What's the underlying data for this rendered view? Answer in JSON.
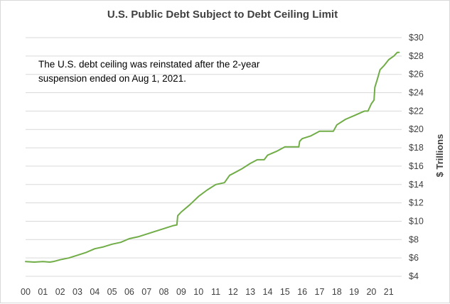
{
  "chart_data": {
    "type": "line",
    "title": "U.S. Public Debt Subject to Debt Ceiling Limit",
    "xlabel": "",
    "ylabel": "$ Trillions",
    "ylim": [
      4,
      30
    ],
    "y_tick_values": [
      4,
      6,
      8,
      10,
      12,
      14,
      16,
      18,
      20,
      22,
      24,
      26,
      28,
      30
    ],
    "y_tick_labels": [
      "$4",
      "$6",
      "$8",
      "$10",
      "$12",
      "$14",
      "$16",
      "$18",
      "$20",
      "$22",
      "$24",
      "$26",
      "$28",
      "$30"
    ],
    "xlim": [
      2000,
      2021.75
    ],
    "x_tick_values": [
      2000,
      2001,
      2002,
      2003,
      2004,
      2005,
      2006,
      2007,
      2008,
      2009,
      2010,
      2011,
      2012,
      2013,
      2014,
      2015,
      2016,
      2017,
      2018,
      2019,
      2020,
      2021
    ],
    "x_tick_labels": [
      "00",
      "01",
      "02",
      "03",
      "04",
      "05",
      "06",
      "07",
      "08",
      "09",
      "10",
      "11",
      "12",
      "13",
      "14",
      "15",
      "16",
      "17",
      "18",
      "19",
      "20",
      "21"
    ],
    "grid": true,
    "legend": "none",
    "annotation": "The U.S. debt ceiling was reinstated after the 2-year suspension ended on Aug 1, 2021.",
    "colors": {
      "line": "#70ad47",
      "grid": "#d9d9d9",
      "text": "#404040"
    },
    "series": [
      {
        "x": [
          2000.0,
          2000.5,
          2001.0,
          2001.4,
          2001.6,
          2002.0,
          2002.5,
          2003.0,
          2003.5,
          2004.0,
          2004.5,
          2005.0,
          2005.5,
          2006.0,
          2006.5,
          2007.0,
          2007.5,
          2008.0,
          2008.5,
          2008.75,
          2008.8,
          2009.0,
          2009.5,
          2010.0,
          2010.5,
          2011.0,
          2011.5,
          2011.8,
          2012.0,
          2012.5,
          2013.0,
          2013.4,
          2013.8,
          2014.0,
          2014.5,
          2015.0,
          2015.3,
          2015.8,
          2015.85,
          2016.0,
          2016.5,
          2017.0,
          2017.8,
          2018.0,
          2018.5,
          2019.0,
          2019.6,
          2019.8,
          2020.0,
          2020.15,
          2020.2,
          2020.35,
          2020.5,
          2020.75,
          2021.0,
          2021.3,
          2021.5,
          2021.6
        ],
        "values": [
          5.6,
          5.55,
          5.6,
          5.55,
          5.6,
          5.8,
          6.0,
          6.3,
          6.6,
          7.0,
          7.2,
          7.5,
          7.7,
          8.1,
          8.3,
          8.6,
          8.9,
          9.2,
          9.5,
          9.6,
          10.6,
          11.0,
          11.8,
          12.7,
          13.4,
          14.0,
          14.2,
          15.0,
          15.2,
          15.7,
          16.3,
          16.7,
          16.7,
          17.2,
          17.6,
          18.1,
          18.1,
          18.1,
          18.7,
          19.0,
          19.3,
          19.8,
          19.8,
          20.5,
          21.1,
          21.5,
          22.0,
          22.0,
          22.8,
          23.2,
          24.6,
          25.5,
          26.5,
          27.0,
          27.6,
          28.0,
          28.4,
          28.4
        ]
      }
    ]
  }
}
